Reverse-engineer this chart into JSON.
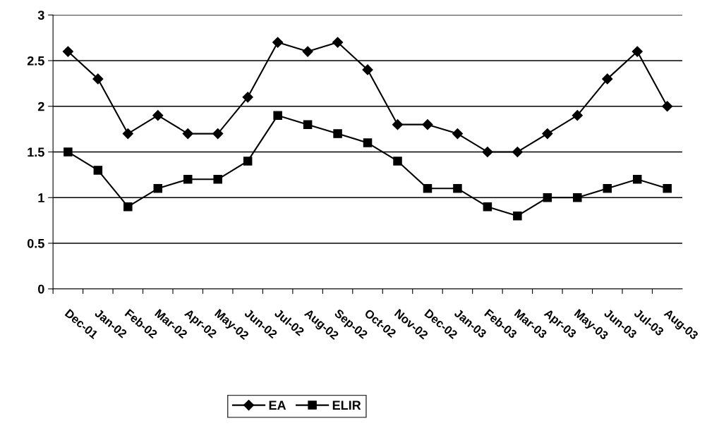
{
  "chart_data": {
    "type": "line",
    "categories": [
      "Dec-01",
      "Jan-02",
      "Feb-02",
      "Mar-02",
      "Apr-02",
      "May-02",
      "Jun-02",
      "Jul-02",
      "Aug-02",
      "Sep-02",
      "Oct-02",
      "Nov-02",
      "Dec-02",
      "Jan-03",
      "Feb-03",
      "Mar-03",
      "Apr-03",
      "May-03",
      "Jun-03",
      "Jul-03",
      "Aug-03"
    ],
    "series": [
      {
        "name": "EA",
        "color": "#000000",
        "marker": "diamond",
        "values": [
          2.6,
          2.3,
          1.7,
          1.9,
          1.7,
          1.7,
          2.1,
          2.7,
          2.6,
          2.7,
          2.4,
          1.8,
          1.8,
          1.7,
          1.5,
          1.5,
          1.7,
          1.9,
          2.3,
          2.6,
          2.0
        ]
      },
      {
        "name": "ELIR",
        "color": "#000000",
        "marker": "square",
        "values": [
          1.5,
          1.3,
          0.9,
          1.1,
          1.2,
          1.2,
          1.4,
          1.9,
          1.8,
          1.7,
          1.6,
          1.4,
          1.1,
          1.1,
          0.9,
          0.8,
          1.0,
          1.0,
          1.1,
          1.2,
          1.1
        ]
      }
    ],
    "ylim": [
      0,
      3
    ],
    "yticks": [
      0,
      0.5,
      1,
      1.5,
      2,
      2.5,
      3
    ],
    "grid": "y",
    "legend": "bottom",
    "line_style": "solid"
  }
}
